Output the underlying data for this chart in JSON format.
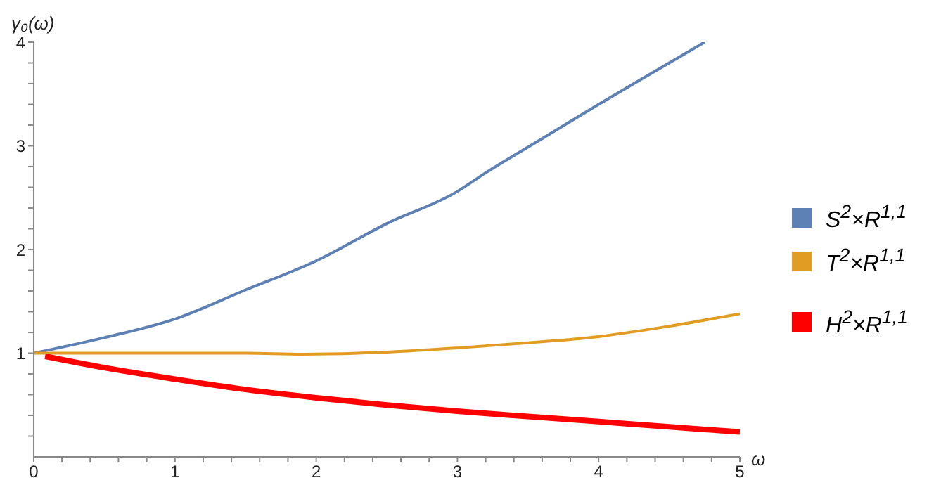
{
  "chart_data": {
    "type": "line",
    "xlabel": "ω",
    "ylabel": "γ₀(ω)",
    "xlim": [
      0,
      5
    ],
    "ylim": [
      0,
      4
    ],
    "xticks": [
      0,
      {
        "value": 0.2,
        "label": null
      },
      {
        "value": 0.4,
        "label": null
      },
      {
        "value": 0.6,
        "label": null
      },
      {
        "value": 0.8,
        "label": null
      },
      1,
      {
        "value": 1.2,
        "label": null
      },
      {
        "value": 1.4,
        "label": null
      },
      {
        "value": 1.6,
        "label": null
      },
      {
        "value": 1.8,
        "label": null
      },
      2,
      {
        "value": 2.2,
        "label": null
      },
      {
        "value": 2.4,
        "label": null
      },
      {
        "value": 2.6,
        "label": null
      },
      {
        "value": 2.8,
        "label": null
      },
      3,
      {
        "value": 3.2,
        "label": null
      },
      {
        "value": 3.4,
        "label": null
      },
      {
        "value": 3.6,
        "label": null
      },
      {
        "value": 3.8,
        "label": null
      },
      4,
      {
        "value": 4.2,
        "label": null
      },
      {
        "value": 4.4,
        "label": null
      },
      {
        "value": 4.6,
        "label": null
      },
      {
        "value": 4.8,
        "label": null
      },
      5
    ],
    "yticks": [
      {
        "value": 0.2,
        "label": null
      },
      {
        "value": 0.4,
        "label": null
      },
      {
        "value": 0.6,
        "label": null
      },
      {
        "value": 0.8,
        "label": null
      },
      1,
      {
        "value": 1.2,
        "label": null
      },
      {
        "value": 1.4,
        "label": null
      },
      {
        "value": 1.6,
        "label": null
      },
      {
        "value": 1.8,
        "label": null
      },
      2,
      {
        "value": 2.2,
        "label": null
      },
      {
        "value": 2.4,
        "label": null
      },
      {
        "value": 2.6,
        "label": null
      },
      {
        "value": 2.8,
        "label": null
      },
      3,
      {
        "value": 3.2,
        "label": null
      },
      {
        "value": 3.4,
        "label": null
      },
      {
        "value": 3.6,
        "label": null
      },
      {
        "value": 3.8,
        "label": null
      },
      4
    ],
    "legend": "right",
    "marker": "none",
    "line_style": "solid",
    "series": [
      {
        "name": "S$^{2}$×R$^{1,1}$",
        "color": "#5e81b5",
        "x": [
          0,
          0.5,
          1,
          1.5,
          2,
          2.5,
          3,
          3.2,
          3.6,
          4,
          4.4,
          4.75
        ],
        "values": [
          1,
          1.15,
          1.33,
          1.61,
          1.89,
          2.25,
          2.56,
          2.74,
          3.07,
          3.4,
          3.72,
          4.0
        ]
      },
      {
        "name": "T$^{2}$×R$^{1,1}$",
        "color": "#e19c24",
        "x": [
          0,
          0.5,
          1,
          1.5,
          1.9,
          2.5,
          3,
          3.5,
          4,
          4.5,
          5
        ],
        "values": [
          1,
          1.0,
          1.0,
          1.0,
          0.99,
          1.01,
          1.05,
          1.1,
          1.16,
          1.26,
          1.38
        ]
      },
      {
        "name": "H$^{2}$×R$^{1,1}$",
        "color": "#ff0000",
        "x": [
          0.08,
          0.5,
          1,
          1.5,
          2,
          2.5,
          3,
          3.5,
          4,
          4.5,
          5
        ],
        "values": [
          0.97,
          0.86,
          0.75,
          0.65,
          0.57,
          0.5,
          0.44,
          0.39,
          0.34,
          0.29,
          0.24
        ]
      }
    ]
  }
}
